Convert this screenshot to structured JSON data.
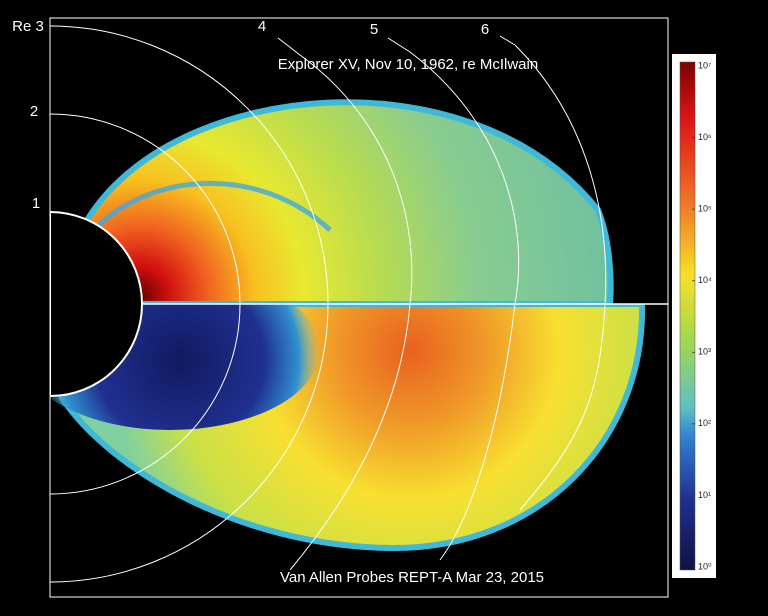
{
  "labels": {
    "re3": "Re 3",
    "r2": "2",
    "r1": "1",
    "l4": "4",
    "l5": "5",
    "l6": "6"
  },
  "top_caption": "Explorer XV, Nov 10, 1962, re McIlwain",
  "bottom_caption": "Van Allen Probes REPT-A Mar 23, 2015",
  "colorbar": {
    "log": true,
    "lim": [
      1,
      10000000
    ],
    "ticks": [
      {
        "value": 1,
        "label": "10⁰"
      },
      {
        "value": 10,
        "label": "10¹"
      },
      {
        "value": 100,
        "label": "10²"
      },
      {
        "value": 1000,
        "label": "10³"
      },
      {
        "value": 10000,
        "label": "10⁴"
      },
      {
        "value": 100000,
        "label": "10⁵"
      },
      {
        "value": 1000000,
        "label": "10⁶"
      },
      {
        "value": 10000000,
        "label": "10⁷"
      }
    ]
  }
}
